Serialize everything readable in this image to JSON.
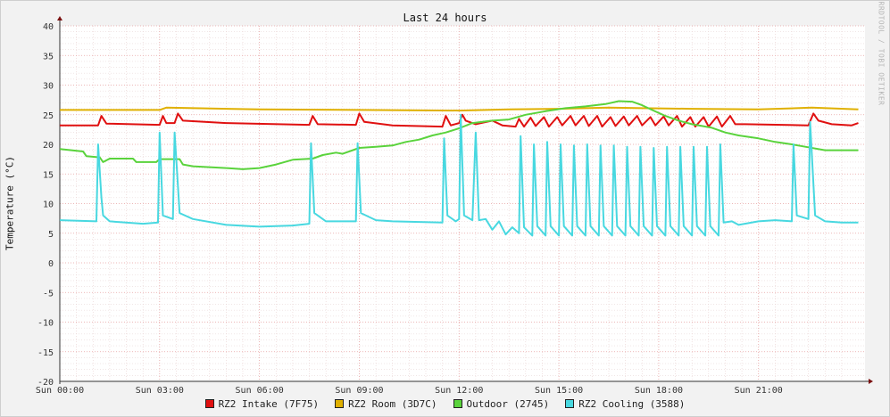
{
  "chart_data": {
    "type": "line",
    "title": "Last 24 hours",
    "ylabel": "Temperature (°C)",
    "xlabel": "",
    "watermark": "RRDTOOL / TOBI OETIKER",
    "ylim": [
      -20,
      40
    ],
    "xlim": [
      0,
      24.2
    ],
    "yticks": [
      -20,
      -15,
      -10,
      -5,
      0,
      5,
      10,
      15,
      20,
      25,
      30,
      35,
      40
    ],
    "xticks": [
      {
        "x": 0,
        "label": "Sun 00:00"
      },
      {
        "x": 3,
        "label": "Sun 03:00"
      },
      {
        "x": 6,
        "label": "Sun 06:00"
      },
      {
        "x": 9,
        "label": "Sun 09:00"
      },
      {
        "x": 12,
        "label": "Sun 12:00"
      },
      {
        "x": 15,
        "label": "Sun 15:00"
      },
      {
        "x": 18,
        "label": "Sun 18:00"
      },
      {
        "x": 21,
        "label": "Sun 21:00"
      }
    ],
    "grid": true,
    "legend_position": "bottom",
    "series": [
      {
        "name": "RZ2 Intake (7F75)",
        "color": "#e01010",
        "points": [
          [
            0,
            23.2
          ],
          [
            1.15,
            23.2
          ],
          [
            1.25,
            24.8
          ],
          [
            1.4,
            23.5
          ],
          [
            3.0,
            23.3
          ],
          [
            3.1,
            24.8
          ],
          [
            3.2,
            23.6
          ],
          [
            3.45,
            23.6
          ],
          [
            3.55,
            25.2
          ],
          [
            3.7,
            24.0
          ],
          [
            5.0,
            23.6
          ],
          [
            7.5,
            23.3
          ],
          [
            7.6,
            24.8
          ],
          [
            7.75,
            23.4
          ],
          [
            8.9,
            23.3
          ],
          [
            9.0,
            25.2
          ],
          [
            9.15,
            23.8
          ],
          [
            10.0,
            23.2
          ],
          [
            11.5,
            23.0
          ],
          [
            11.6,
            24.8
          ],
          [
            11.75,
            23.2
          ],
          [
            12.0,
            23.6
          ],
          [
            12.1,
            25.0
          ],
          [
            12.2,
            24.0
          ],
          [
            12.5,
            23.4
          ],
          [
            13.0,
            24.0
          ],
          [
            13.3,
            23.2
          ],
          [
            13.7,
            23.0
          ],
          [
            13.8,
            24.3
          ],
          [
            13.95,
            23.0
          ],
          [
            14.15,
            24.5
          ],
          [
            14.3,
            23.1
          ],
          [
            14.55,
            24.6
          ],
          [
            14.7,
            23.0
          ],
          [
            14.95,
            24.6
          ],
          [
            15.1,
            23.2
          ],
          [
            15.35,
            24.8
          ],
          [
            15.5,
            23.2
          ],
          [
            15.75,
            24.8
          ],
          [
            15.9,
            23.1
          ],
          [
            16.15,
            24.8
          ],
          [
            16.3,
            23.0
          ],
          [
            16.55,
            24.6
          ],
          [
            16.7,
            23.1
          ],
          [
            16.95,
            24.7
          ],
          [
            17.1,
            23.2
          ],
          [
            17.35,
            24.8
          ],
          [
            17.5,
            23.2
          ],
          [
            17.75,
            24.6
          ],
          [
            17.9,
            23.2
          ],
          [
            18.15,
            24.7
          ],
          [
            18.3,
            23.2
          ],
          [
            18.55,
            24.8
          ],
          [
            18.7,
            23.0
          ],
          [
            18.95,
            24.6
          ],
          [
            19.1,
            23.0
          ],
          [
            19.35,
            24.6
          ],
          [
            19.5,
            23.0
          ],
          [
            19.75,
            24.7
          ],
          [
            19.9,
            23.0
          ],
          [
            20.15,
            24.8
          ],
          [
            20.3,
            23.4
          ],
          [
            20.6,
            23.4
          ],
          [
            22.5,
            23.2
          ],
          [
            22.65,
            25.2
          ],
          [
            22.8,
            24.0
          ],
          [
            23.2,
            23.4
          ],
          [
            23.8,
            23.2
          ],
          [
            24.0,
            23.6
          ]
        ]
      },
      {
        "name": "RZ2 Room (3D7C)",
        "color": "#e0b000",
        "points": [
          [
            0,
            25.8
          ],
          [
            3.0,
            25.8
          ],
          [
            3.2,
            26.2
          ],
          [
            6.0,
            25.9
          ],
          [
            9.0,
            25.8
          ],
          [
            12.0,
            25.7
          ],
          [
            13.5,
            25.9
          ],
          [
            15.0,
            26.0
          ],
          [
            16.5,
            26.2
          ],
          [
            17.5,
            26.1
          ],
          [
            19.0,
            26.0
          ],
          [
            21.0,
            25.9
          ],
          [
            22.6,
            26.2
          ],
          [
            24.0,
            25.9
          ]
        ]
      },
      {
        "name": "Outdoor (2745)",
        "color": "#5ad33c",
        "points": [
          [
            0,
            19.2
          ],
          [
            0.7,
            18.8
          ],
          [
            0.8,
            18.0
          ],
          [
            1.2,
            17.8
          ],
          [
            1.3,
            17.0
          ],
          [
            1.5,
            17.6
          ],
          [
            2.2,
            17.6
          ],
          [
            2.3,
            17.0
          ],
          [
            2.9,
            17.0
          ],
          [
            3.0,
            17.5
          ],
          [
            3.6,
            17.5
          ],
          [
            3.7,
            16.6
          ],
          [
            4.0,
            16.3
          ],
          [
            5.0,
            16.0
          ],
          [
            5.5,
            15.8
          ],
          [
            6.0,
            16.0
          ],
          [
            6.5,
            16.6
          ],
          [
            7.0,
            17.4
          ],
          [
            7.6,
            17.6
          ],
          [
            7.9,
            18.2
          ],
          [
            8.3,
            18.6
          ],
          [
            8.5,
            18.4
          ],
          [
            9.0,
            19.4
          ],
          [
            9.5,
            19.6
          ],
          [
            10.0,
            19.8
          ],
          [
            10.4,
            20.4
          ],
          [
            10.8,
            20.8
          ],
          [
            11.2,
            21.5
          ],
          [
            11.6,
            22.0
          ],
          [
            12.0,
            22.7
          ],
          [
            12.4,
            23.6
          ],
          [
            13.0,
            24.0
          ],
          [
            13.5,
            24.2
          ],
          [
            14.0,
            25.0
          ],
          [
            14.6,
            25.6
          ],
          [
            15.2,
            26.1
          ],
          [
            15.8,
            26.4
          ],
          [
            16.4,
            26.8
          ],
          [
            16.8,
            27.3
          ],
          [
            17.2,
            27.2
          ],
          [
            17.5,
            26.6
          ],
          [
            17.8,
            25.8
          ],
          [
            18.2,
            24.8
          ],
          [
            18.6,
            24.0
          ],
          [
            19.0,
            23.4
          ],
          [
            19.6,
            22.8
          ],
          [
            20.0,
            22.0
          ],
          [
            20.4,
            21.5
          ],
          [
            21.0,
            21.0
          ],
          [
            21.5,
            20.4
          ],
          [
            22.0,
            20.0
          ],
          [
            22.5,
            19.5
          ],
          [
            23.0,
            19.0
          ],
          [
            23.5,
            19.0
          ],
          [
            24.0,
            19.0
          ]
        ]
      },
      {
        "name": "RZ2 Cooling (3588)",
        "color": "#48d8e0",
        "points": [
          [
            0,
            7.2
          ],
          [
            1.1,
            7.0
          ],
          [
            1.15,
            20.0
          ],
          [
            1.25,
            11.0
          ],
          [
            1.3,
            8.0
          ],
          [
            1.5,
            7.0
          ],
          [
            2.5,
            6.6
          ],
          [
            2.95,
            6.8
          ],
          [
            3.0,
            22.0
          ],
          [
            3.1,
            8.0
          ],
          [
            3.4,
            7.4
          ],
          [
            3.45,
            22.0
          ],
          [
            3.6,
            8.4
          ],
          [
            4.0,
            7.4
          ],
          [
            5.0,
            6.4
          ],
          [
            6.0,
            6.1
          ],
          [
            7.0,
            6.3
          ],
          [
            7.5,
            6.6
          ],
          [
            7.55,
            20.2
          ],
          [
            7.65,
            8.4
          ],
          [
            8.0,
            7.0
          ],
          [
            8.9,
            7.0
          ],
          [
            8.95,
            20.2
          ],
          [
            9.05,
            8.4
          ],
          [
            9.5,
            7.2
          ],
          [
            10.0,
            7.0
          ],
          [
            11.5,
            6.8
          ],
          [
            11.55,
            21.0
          ],
          [
            11.65,
            8.0
          ],
          [
            11.9,
            7.0
          ],
          [
            12.0,
            7.4
          ],
          [
            12.05,
            25.0
          ],
          [
            12.15,
            8.0
          ],
          [
            12.4,
            7.2
          ],
          [
            12.5,
            22.0
          ],
          [
            12.6,
            7.2
          ],
          [
            12.8,
            7.4
          ],
          [
            13.0,
            5.6
          ],
          [
            13.2,
            7.0
          ],
          [
            13.4,
            4.8
          ],
          [
            13.6,
            6.0
          ],
          [
            13.8,
            5.0
          ],
          [
            13.85,
            21.4
          ],
          [
            13.95,
            6.0
          ],
          [
            14.2,
            4.6
          ],
          [
            14.25,
            20.0
          ],
          [
            14.35,
            6.2
          ],
          [
            14.6,
            4.6
          ],
          [
            14.65,
            20.4
          ],
          [
            14.75,
            6.2
          ],
          [
            15.0,
            4.6
          ],
          [
            15.05,
            20.0
          ],
          [
            15.15,
            6.2
          ],
          [
            15.4,
            4.6
          ],
          [
            15.45,
            19.8
          ],
          [
            15.55,
            6.2
          ],
          [
            15.8,
            4.6
          ],
          [
            15.85,
            20.0
          ],
          [
            15.95,
            6.2
          ],
          [
            16.2,
            4.6
          ],
          [
            16.25,
            19.8
          ],
          [
            16.35,
            6.2
          ],
          [
            16.6,
            4.6
          ],
          [
            16.65,
            19.8
          ],
          [
            16.75,
            6.2
          ],
          [
            17.0,
            4.6
          ],
          [
            17.05,
            19.6
          ],
          [
            17.15,
            6.2
          ],
          [
            17.4,
            4.6
          ],
          [
            17.45,
            19.6
          ],
          [
            17.55,
            6.2
          ],
          [
            17.8,
            4.6
          ],
          [
            17.85,
            19.4
          ],
          [
            17.95,
            6.2
          ],
          [
            18.2,
            4.6
          ],
          [
            18.25,
            19.6
          ],
          [
            18.35,
            6.2
          ],
          [
            18.6,
            4.6
          ],
          [
            18.65,
            19.6
          ],
          [
            18.75,
            6.2
          ],
          [
            19.0,
            4.6
          ],
          [
            19.05,
            19.6
          ],
          [
            19.15,
            6.2
          ],
          [
            19.4,
            4.6
          ],
          [
            19.45,
            19.6
          ],
          [
            19.55,
            6.2
          ],
          [
            19.8,
            4.6
          ],
          [
            19.85,
            20.0
          ],
          [
            19.95,
            6.8
          ],
          [
            20.2,
            7.0
          ],
          [
            20.4,
            6.4
          ],
          [
            21.0,
            7.0
          ],
          [
            21.5,
            7.2
          ],
          [
            22.0,
            7.0
          ],
          [
            22.05,
            20.0
          ],
          [
            22.15,
            8.0
          ],
          [
            22.5,
            7.4
          ],
          [
            22.55,
            23.8
          ],
          [
            22.7,
            8.0
          ],
          [
            23.0,
            7.0
          ],
          [
            23.5,
            6.8
          ],
          [
            24.0,
            6.8
          ]
        ]
      }
    ]
  }
}
